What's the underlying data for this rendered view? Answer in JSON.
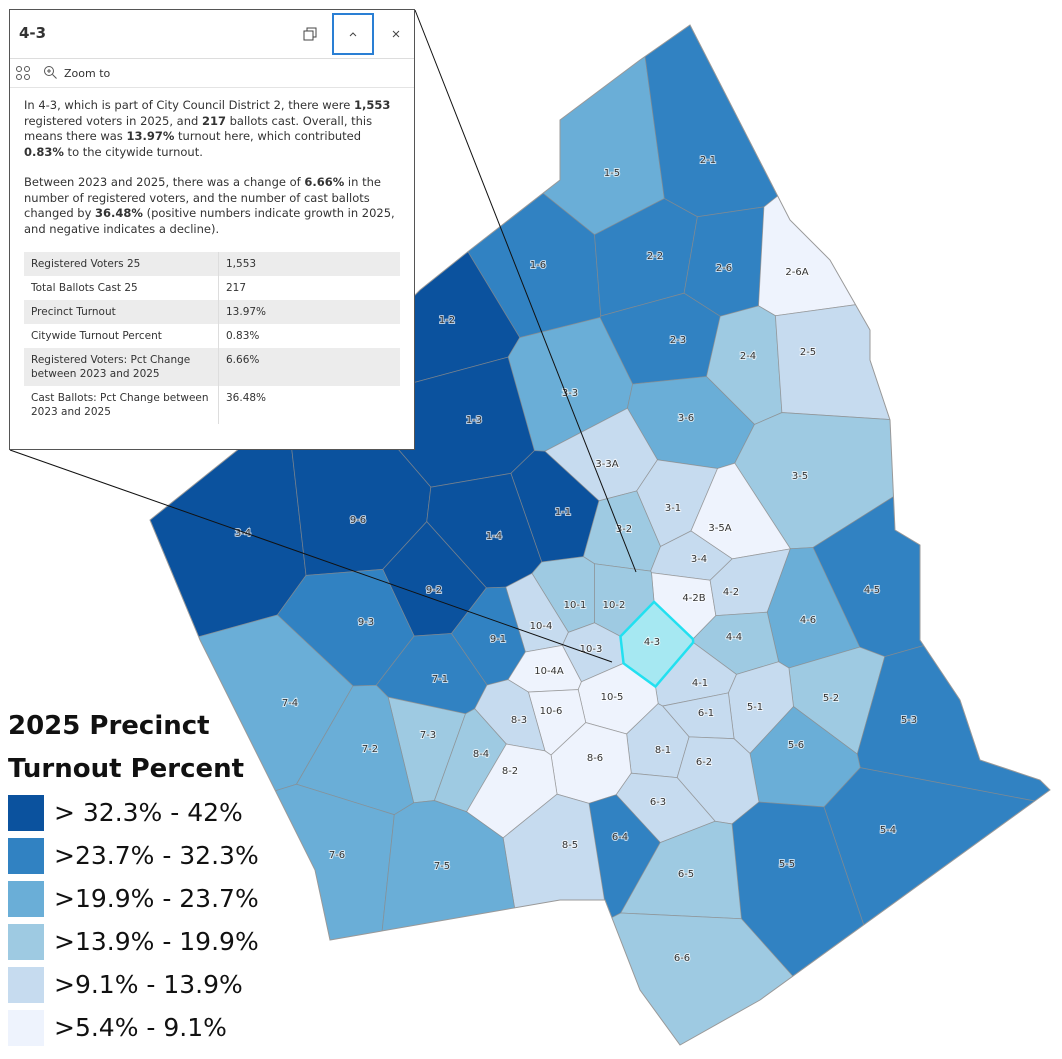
{
  "popup": {
    "title": "4-3",
    "zoom": "Zoom to",
    "paragraphs": [
      [
        "In 4-3, which is part of City Council District 2, there were ",
        "1,553",
        " registered voters in 2025, and ",
        "217",
        " ballots cast. Overall, this means there was ",
        "13.97%",
        " turnout here, which contributed ",
        "0.83%",
        " to the citywide turnout."
      ],
      [
        "Between 2023 and 2025, there was a change of ",
        "6.66%",
        " in the number of registered voters, and the number of cast ballots changed by ",
        "36.48%",
        " (positive numbers indicate growth in 2025, and negative indicates a decline)."
      ]
    ],
    "table": [
      [
        "Registered Voters 25",
        "1,553"
      ],
      [
        "Total Ballots Cast 25",
        "217"
      ],
      [
        "Precinct Turnout",
        "13.97%"
      ],
      [
        "Citywide Turnout Percent",
        "0.83%"
      ],
      [
        "Registered Voters: Pct Change between 2023 and 2025",
        "6.66%"
      ],
      [
        "Cast Ballots: Pct Change between 2023 and 2025",
        "36.48%"
      ]
    ]
  },
  "legend": {
    "title": "2025 Precinct Turnout Percent",
    "items": [
      {
        "label": "> 32.3% - 42%",
        "color": "#0b529e"
      },
      {
        "label": ">23.7% - 32.3%",
        "color": "#3182c2"
      },
      {
        "label": ">19.9% - 23.7%",
        "color": "#6aaed7"
      },
      {
        "label": ">13.9% - 19.9%",
        "color": "#9ecae2"
      },
      {
        "label": ">9.1% - 13.9%",
        "color": "#c6dbef"
      },
      {
        "label": ">5.4% - 9.1%",
        "color": "#eef3fd"
      }
    ]
  },
  "precincts": [
    {
      "label": "1-5",
      "color": "#6aaed7"
    },
    {
      "label": "2-1",
      "color": "#3182c2"
    },
    {
      "label": "1-6",
      "color": "#3182c2"
    },
    {
      "label": "2-2",
      "color": "#3182c2"
    },
    {
      "label": "2-6",
      "color": "#3182c2"
    },
    {
      "label": "2-6A",
      "color": "#eef3fd"
    },
    {
      "label": "1-2",
      "color": "#0b529e"
    },
    {
      "label": "2-3",
      "color": "#3182c2"
    },
    {
      "label": "2-4",
      "color": "#9ecae2"
    },
    {
      "label": "2-5",
      "color": "#c6dbef"
    },
    {
      "label": "3-3",
      "color": "#6aaed7"
    },
    {
      "label": "1-3",
      "color": "#0b529e"
    },
    {
      "label": "3-6",
      "color": "#6aaed7"
    },
    {
      "label": "3-3A",
      "color": "#c6dbef"
    },
    {
      "label": "3-5",
      "color": "#9ecae2"
    },
    {
      "label": "3-1",
      "color": "#c6dbef"
    },
    {
      "label": "3-4",
      "color": "#0b529e"
    },
    {
      "label": "9-6",
      "color": "#0b529e"
    },
    {
      "label": "1-1",
      "color": "#0b529e"
    },
    {
      "label": "1-4",
      "color": "#0b529e"
    },
    {
      "label": "3-5A",
      "color": "#eef3fd"
    },
    {
      "label": "3-2",
      "color": "#9ecae2"
    },
    {
      "label": "3-4",
      "color": "#c6dbef"
    },
    {
      "label": "4-5",
      "color": "#3182c2"
    },
    {
      "label": "9-2",
      "color": "#0b529e"
    },
    {
      "label": "4-2B",
      "color": "#eef3fd"
    },
    {
      "label": "4-2",
      "color": "#c6dbef"
    },
    {
      "label": "10-1",
      "color": "#9ecae2"
    },
    {
      "label": "10-2",
      "color": "#9ecae2"
    },
    {
      "label": "4-6",
      "color": "#6aaed7"
    },
    {
      "label": "9-3",
      "color": "#3182c2"
    },
    {
      "label": "10-4",
      "color": "#c6dbef"
    },
    {
      "label": "4-3",
      "color": "#a6e8f2",
      "selected": true
    },
    {
      "label": "4-4",
      "color": "#9ecae2"
    },
    {
      "label": "9-1",
      "color": "#3182c2"
    },
    {
      "label": "10-3",
      "color": "#c6dbef"
    },
    {
      "label": "7-4",
      "color": "#6aaed7"
    },
    {
      "label": "7-1",
      "color": "#3182c2"
    },
    {
      "label": "10-4A",
      "color": "#eef3fd"
    },
    {
      "label": "4-1",
      "color": "#c6dbef"
    },
    {
      "label": "5-2",
      "color": "#9ecae2"
    },
    {
      "label": "10-5",
      "color": "#eef3fd"
    },
    {
      "label": "5-1",
      "color": "#c6dbef"
    },
    {
      "label": "6-1",
      "color": "#c6dbef"
    },
    {
      "label": "10-6",
      "color": "#eef3fd"
    },
    {
      "label": "8-3",
      "color": "#c6dbef"
    },
    {
      "label": "5-3",
      "color": "#3182c2"
    },
    {
      "label": "7-3",
      "color": "#9ecae2"
    },
    {
      "label": "5-6",
      "color": "#6aaed7"
    },
    {
      "label": "7-2",
      "color": "#6aaed7"
    },
    {
      "label": "8-4",
      "color": "#9ecae2"
    },
    {
      "label": "8-1",
      "color": "#c6dbef"
    },
    {
      "label": "8-6",
      "color": "#eef3fd"
    },
    {
      "label": "6-2",
      "color": "#c6dbef"
    },
    {
      "label": "8-2",
      "color": "#eef3fd"
    },
    {
      "label": "6-3",
      "color": "#c6dbef"
    },
    {
      "label": "6-4",
      "color": "#3182c2"
    },
    {
      "label": "5-4",
      "color": "#3182c2"
    },
    {
      "label": "8-5",
      "color": "#c6dbef"
    },
    {
      "label": "7-6",
      "color": "#6aaed7"
    },
    {
      "label": "7-5",
      "color": "#6aaed7"
    },
    {
      "label": "5-5",
      "color": "#3182c2"
    },
    {
      "label": "6-5",
      "color": "#9ecae2"
    },
    {
      "label": "6-6",
      "color": "#9ecae2"
    }
  ]
}
